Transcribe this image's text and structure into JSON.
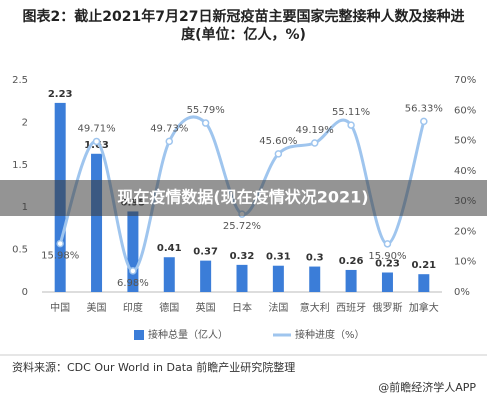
{
  "chart_data": {
    "type": "bar_line",
    "title": "图表2：截止2021年7月27日新冠疫苗主要国家完整接种人数及接种进度(单位：亿人，%)",
    "categories": [
      "中国",
      "美国",
      "印度",
      "德国",
      "英国",
      "日本",
      "法国",
      "意大利",
      "西班牙",
      "俄罗斯",
      "加拿大"
    ],
    "series": [
      {
        "name": "接种总量（亿人）",
        "type": "bar",
        "color": "#3b7dd8",
        "values": [
          2.23,
          1.63,
          0.95,
          0.41,
          0.37,
          0.32,
          0.31,
          0.3,
          0.26,
          0.23,
          0.21
        ]
      },
      {
        "name": "接种进度（%）",
        "type": "line",
        "axis": "y2",
        "color": "#9fc5ee",
        "values": [
          15.98,
          49.71,
          6.98,
          49.73,
          55.79,
          25.72,
          45.6,
          49.19,
          55.11,
          15.9,
          56.33
        ],
        "value_labels": [
          "15.98%",
          "49.71%",
          "6.98%",
          "49.73%",
          "55.79%",
          "25.72%",
          "45.60%",
          "49.19%",
          "55.11%",
          "15.90%",
          "56.33%"
        ]
      }
    ],
    "ylim": [
      0,
      2.5
    ],
    "yticks": [
      0,
      0.5,
      1,
      1.5,
      2,
      2.5
    ],
    "y2lim": [
      0,
      70
    ],
    "y2ticks": [
      {
        "value": 0,
        "label": "0%"
      },
      {
        "value": 10,
        "label": "10%"
      },
      {
        "value": 20,
        "label": "20%"
      },
      {
        "value": 30,
        "label": "30%"
      },
      {
        "value": 40,
        "label": "40%"
      },
      {
        "value": 50,
        "label": "50%"
      },
      {
        "value": 60,
        "label": "60%"
      },
      {
        "value": 70,
        "label": "70%"
      }
    ],
    "source": "资料来源：CDC Our World in Data 前瞻产业研究院整理",
    "brand": "@前瞻经济学人APP",
    "overlay": "现在疫情数据(现在疫情状况2021)"
  }
}
